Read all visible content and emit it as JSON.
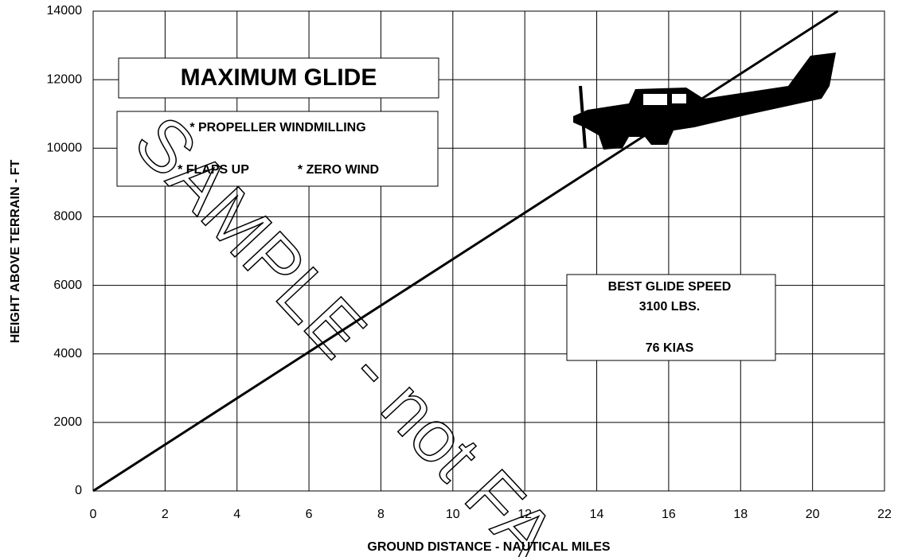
{
  "chart_data": {
    "type": "line",
    "x_label": "GROUND DISTANCE - NAUTICAL MILES",
    "y_label": "HEIGHT ABOVE TERRAIN - FT",
    "x": [
      0,
      20.7
    ],
    "series": [
      {
        "color": "#000000",
        "values": [
          0,
          14000
        ]
      }
    ],
    "xlim": [
      0,
      22
    ],
    "xticks": [
      0,
      2,
      4,
      6,
      8,
      10,
      12,
      14,
      16,
      18,
      20,
      22
    ],
    "ylim": [
      0,
      14000
    ],
    "yticks": [
      0,
      2000,
      4000,
      6000,
      8000,
      10000,
      12000,
      14000
    ],
    "grid": true,
    "annotations": {
      "title_box": "MAXIMUM GLIDE",
      "conditions": [
        "* PROPELLER WINDMILLING",
        "* FLAPS UP",
        "* ZERO WIND"
      ],
      "speed_box": [
        "BEST GLIDE SPEED",
        "3100 LBS.",
        "76 KIAS"
      ]
    },
    "watermark": "SAMPLE - not FA"
  }
}
